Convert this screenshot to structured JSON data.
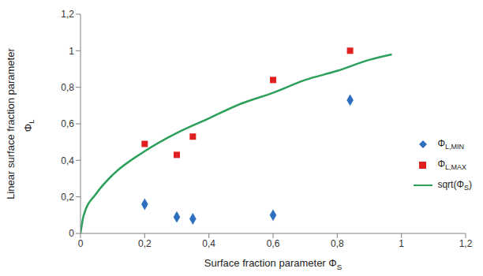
{
  "chart_data": {
    "type": "scatter",
    "xlabel": "Surface fraction parameter ΦS",
    "ylabel": [
      "Linear surface fraction parameter",
      "ΦL"
    ],
    "xlim": [
      0,
      1.2
    ],
    "xticks": [
      0,
      {
        "value": 0.2,
        "label": "0,2"
      },
      {
        "value": 0.4,
        "label": "0,4"
      },
      {
        "value": 0.6,
        "label": "0,6"
      },
      {
        "value": 0.8,
        "label": "0,8"
      },
      1,
      {
        "value": 1.2,
        "label": "1,2"
      }
    ],
    "ylim": [
      0,
      1.2
    ],
    "yticks": [
      0,
      {
        "value": 0.2,
        "label": "0,2"
      },
      {
        "value": 0.4,
        "label": "0,4"
      },
      {
        "value": 0.6,
        "label": "0,6"
      },
      {
        "value": 0.8,
        "label": "0,8"
      },
      1,
      {
        "value": 1.2,
        "label": "1,2"
      }
    ],
    "grid": false,
    "legend": "right",
    "series": [
      {
        "name": "ΦL,MIN",
        "type": "scatter",
        "marker": "diamond",
        "color": "#2f6fc0",
        "x": [
          0.2,
          0.3,
          0.35,
          0.6,
          0.84
        ],
        "values": [
          0.16,
          0.09,
          0.08,
          0.1,
          0.73
        ]
      },
      {
        "name": "ΦL,MAX",
        "type": "scatter",
        "marker": "square",
        "color": "#e02020",
        "x": [
          0.2,
          0.3,
          0.35,
          0.6,
          0.84
        ],
        "values": [
          0.49,
          0.43,
          0.53,
          0.84,
          1.0
        ]
      },
      {
        "name": "sqrt(ΦS)",
        "type": "line",
        "color": "#2ca05a",
        "line_style": "solid",
        "x": [
          0,
          0.01,
          0.05,
          0.1,
          0.2,
          0.3,
          0.4,
          0.5,
          0.6,
          0.7,
          0.8,
          0.9,
          0.97
        ],
        "values": [
          0,
          0.1,
          0.22,
          0.32,
          0.45,
          0.55,
          0.63,
          0.71,
          0.77,
          0.84,
          0.89,
          0.95,
          0.98
        ]
      }
    ]
  }
}
